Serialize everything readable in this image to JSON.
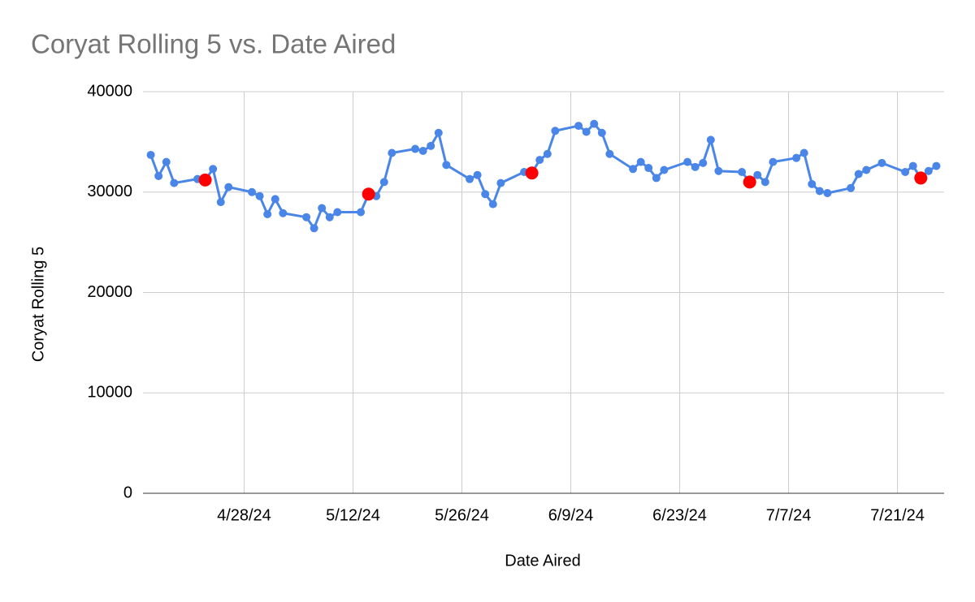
{
  "chart_data": {
    "type": "line",
    "title": "Coryat Rolling 5 vs. Date Aired",
    "x_label": "Date Aired",
    "y_label": "Coryat Rolling 5",
    "x": [
      "4/16/24",
      "4/17/24",
      "4/18/24",
      "4/19/24",
      "4/22/24",
      "4/23/24",
      "4/24/24",
      "4/25/24",
      "4/26/24",
      "4/29/24",
      "4/30/24",
      "5/1/24",
      "5/2/24",
      "5/3/24",
      "5/6/24",
      "5/7/24",
      "5/8/24",
      "5/9/24",
      "5/10/24",
      "5/13/24",
      "5/14/24",
      "5/15/24",
      "5/16/24",
      "5/17/24",
      "5/20/24",
      "5/21/24",
      "5/22/24",
      "5/23/24",
      "5/24/24",
      "5/27/24",
      "5/28/24",
      "5/29/24",
      "5/30/24",
      "5/31/24",
      "6/3/24",
      "6/4/24",
      "6/5/24",
      "6/6/24",
      "6/7/24",
      "6/10/24",
      "6/11/24",
      "6/12/24",
      "6/13/24",
      "6/14/24",
      "6/17/24",
      "6/18/24",
      "6/19/24",
      "6/20/24",
      "6/21/24",
      "6/24/24",
      "6/25/24",
      "6/26/24",
      "6/27/24",
      "6/28/24",
      "7/1/24",
      "7/2/24",
      "7/3/24",
      "7/4/24",
      "7/5/24",
      "7/8/24",
      "7/9/24",
      "7/10/24",
      "7/11/24",
      "7/12/24",
      "7/15/24",
      "7/16/24",
      "7/17/24",
      "7/19/24",
      "7/22/24",
      "7/23/24",
      "7/24/24",
      "7/25/24",
      "7/26/24"
    ],
    "series": [
      {
        "color": "#4a86e8",
        "line": true,
        "values": [
          33700,
          31600,
          33000,
          30900,
          31300,
          31200,
          32300,
          29000,
          30500,
          30000,
          29600,
          27800,
          29300,
          27900,
          27500,
          26400,
          28400,
          27500,
          28000,
          28000,
          29800,
          29600,
          31000,
          33900,
          34300,
          34100,
          34600,
          35900,
          32700,
          31300,
          31700,
          29800,
          28800,
          30900,
          32000,
          31900,
          33200,
          33800,
          36100,
          36600,
          36000,
          36800,
          35900,
          33800,
          32300,
          33000,
          32400,
          31400,
          32200,
          33000,
          32500,
          32900,
          35200,
          32100,
          32000,
          31000,
          31700,
          31000,
          33000,
          33400,
          33900,
          30800,
          30100,
          29900,
          30400,
          31800,
          32200,
          32900,
          32000,
          32600,
          31400,
          32100,
          32600
        ]
      },
      {
        "color": "#ff0000",
        "line": false,
        "values": [
          null,
          null,
          null,
          null,
          null,
          31200,
          null,
          null,
          null,
          null,
          null,
          null,
          null,
          null,
          null,
          null,
          null,
          null,
          null,
          null,
          29800,
          null,
          null,
          null,
          null,
          null,
          null,
          null,
          null,
          null,
          null,
          null,
          null,
          null,
          null,
          31900,
          null,
          null,
          null,
          null,
          null,
          null,
          null,
          null,
          null,
          null,
          null,
          null,
          null,
          null,
          null,
          null,
          null,
          null,
          null,
          31000,
          null,
          null,
          null,
          null,
          null,
          null,
          null,
          null,
          null,
          null,
          null,
          null,
          null,
          null,
          31400,
          null,
          null
        ]
      }
    ],
    "xlim": [
      "4/15/24",
      "7/27/24"
    ],
    "xticks": [
      "4/28/24",
      "5/12/24",
      "5/26/24",
      "6/9/24",
      "6/23/24",
      "7/7/24",
      "7/21/24"
    ],
    "ylim": [
      0,
      40000
    ],
    "yticks": [
      0,
      10000,
      20000,
      30000,
      40000
    ],
    "grid": true
  }
}
